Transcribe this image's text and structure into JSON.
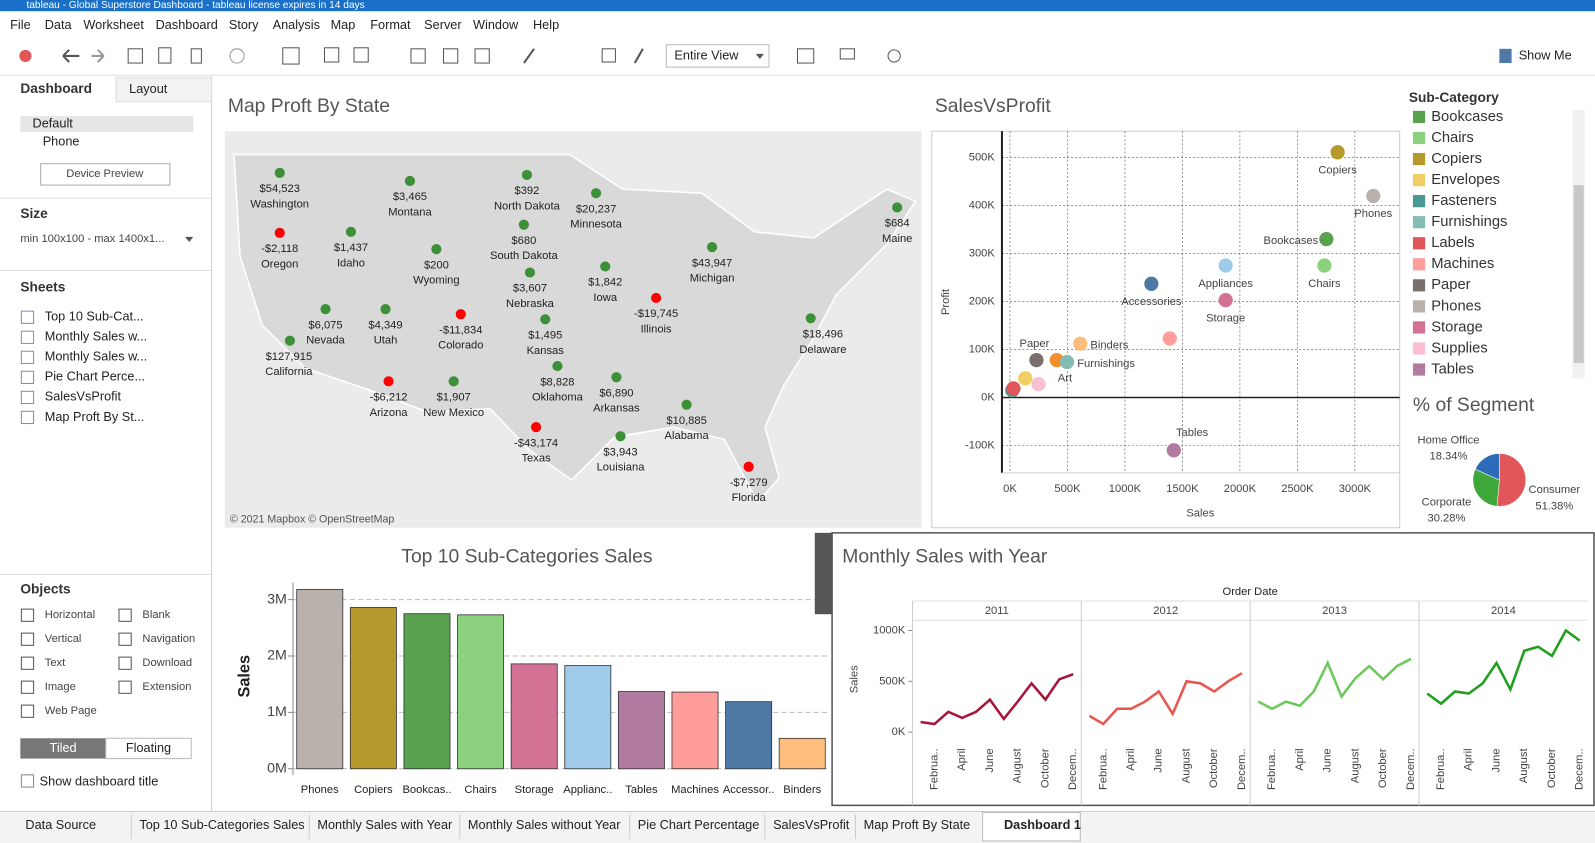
{
  "window": {
    "title": "tableau - Global Superstore Dashboard - tableau license expires in 14 days"
  },
  "menu": [
    "File",
    "Data",
    "Worksheet",
    "Dashboard",
    "Story",
    "Analysis",
    "Map",
    "Format",
    "Server",
    "Window",
    "Help"
  ],
  "toolbar": {
    "view": "Entire View",
    "show_me": "Show Me"
  },
  "side_panel": {
    "tabs": [
      "Dashboard",
      "Layout"
    ],
    "devices": [
      "Default",
      "Phone"
    ],
    "device_preview": "Device Preview",
    "size_heading": "Size",
    "size_value": "min 100x100 - max 1400x1...",
    "sheets_heading": "Sheets",
    "sheets": [
      "Top 10 Sub-Cat...",
      "Monthly Sales w...",
      "Monthly Sales w...",
      "Pie Chart Perce...",
      "SalesVsProfit",
      "Map Proft By St..."
    ],
    "objects_heading": "Objects",
    "objects": [
      "Horizontal",
      "Blank",
      "Vertical",
      "Navigation",
      "Text",
      "Download",
      "Image",
      "Extension",
      "Web Page"
    ],
    "layout_modes": [
      "Tiled",
      "Floating"
    ],
    "show_title": "Show dashboard title"
  },
  "tabs": [
    "Data Source",
    "Top 10 Sub-Categories Sales",
    "Monthly Sales with Year",
    "Monthly Sales without Year",
    "Pie Chart Percentage",
    "SalesVsProfit",
    "Map Proft By State",
    "Dashboard 1"
  ],
  "chart_data": [
    {
      "type": "bar",
      "title": "Top 10 Sub-Categories Sales",
      "y_label": "Sales",
      "categories": [
        "Phones",
        "Copiers",
        "Bookcas..",
        "Chairs",
        "Storage",
        "Applianc..",
        "Tables",
        "Machines",
        "Accessor..",
        "Binders"
      ],
      "values": [
        3180000,
        2860000,
        2750000,
        2730000,
        1860000,
        1830000,
        1370000,
        1360000,
        1190000,
        540000
      ],
      "colors": [
        "#bab0ac",
        "#b6992d",
        "#59a14f",
        "#8cd17d",
        "#d37295",
        "#a0cbe8",
        "#b07aa1",
        "#ff9d9a",
        "#4e79a7",
        "#ffbe7d"
      ],
      "ylim": [
        0,
        3300000
      ],
      "yticks": [
        {
          "value": 0,
          "label": "0M"
        },
        {
          "value": 1000000,
          "label": "1M"
        },
        {
          "value": 2000000,
          "label": "2M"
        },
        {
          "value": 3000000,
          "label": "3M"
        }
      ],
      "grid": true
    },
    {
      "type": "line",
      "title": "Monthly Sales with Year",
      "x_label": "Order Date",
      "y_label": "Sales",
      "categories": [
        null,
        "Februa..",
        null,
        "April",
        null,
        "June",
        null,
        "August",
        null,
        "October",
        null,
        "Decem.."
      ],
      "series": [
        {
          "name": "2011",
          "color": "#a8143a",
          "values": [
            100000,
            80000,
            200000,
            140000,
            200000,
            320000,
            130000,
            300000,
            480000,
            320000,
            520000,
            570000
          ]
        },
        {
          "name": "2012",
          "color": "#e8574f",
          "values": [
            160000,
            80000,
            230000,
            230000,
            300000,
            400000,
            180000,
            500000,
            480000,
            400000,
            500000,
            580000
          ]
        },
        {
          "name": "2013",
          "color": "#6cc95a",
          "values": [
            300000,
            230000,
            300000,
            260000,
            400000,
            680000,
            350000,
            530000,
            650000,
            520000,
            650000,
            720000
          ]
        },
        {
          "name": "2014",
          "color": "#1ea01e",
          "values": [
            380000,
            280000,
            400000,
            380000,
            480000,
            680000,
            420000,
            800000,
            840000,
            750000,
            1000000,
            900000
          ]
        }
      ],
      "ylim": [
        -100000,
        1100000
      ],
      "yticks": [
        {
          "value": 0,
          "label": "0K"
        },
        {
          "value": 500000,
          "label": "500K"
        },
        {
          "value": 1000000,
          "label": "1000K"
        }
      ]
    },
    {
      "type": "scatter",
      "title": "SalesVsProfit",
      "x_label": "Sales",
      "y_label": "Profit",
      "legend_title": "Sub-Category",
      "categories": [
        "Accessories",
        "Appliances",
        "Art",
        "Binders",
        "Bookcases",
        "Chairs",
        "Copiers",
        "Envelopes",
        "Fasteners",
        "Furnishings",
        "Labels",
        "Machines",
        "Paper",
        "Phones",
        "Storage",
        "Supplies",
        "Tables"
      ],
      "x": [
        1230000,
        1876000,
        407000,
        611000,
        2752000,
        2735000,
        2850000,
        133000,
        20000,
        496000,
        30000,
        1390000,
        230000,
        3160000,
        1876000,
        248000,
        1425000
      ],
      "values": [
        237000,
        275000,
        78000,
        112000,
        330000,
        275000,
        511000,
        40000,
        15000,
        74000,
        19000,
        123000,
        78000,
        420000,
        203000,
        28000,
        -110000
      ],
      "colors": [
        "#4e79a7",
        "#a0cbe8",
        "#f28e2b",
        "#ffbe7d",
        "#59a14f",
        "#8cd17d",
        "#b6992d",
        "#f1ce63",
        "#499894",
        "#86bcb6",
        "#e15759",
        "#ff9d9a",
        "#79706e",
        "#bab0ac",
        "#d37295",
        "#fabfd2",
        "#b07aa1"
      ],
      "labeled": [
        true,
        true,
        true,
        true,
        true,
        true,
        true,
        false,
        false,
        true,
        false,
        false,
        true,
        true,
        true,
        false,
        true
      ],
      "xlim": [
        -70000,
        3390000
      ],
      "ylim": [
        -157000,
        555000
      ],
      "xticks": [
        {
          "value": 0,
          "label": "0K"
        },
        {
          "value": 500000,
          "label": "500K"
        },
        {
          "value": 1000000,
          "label": "1000K"
        },
        {
          "value": 1500000,
          "label": "1500K"
        },
        {
          "value": 2000000,
          "label": "2000K"
        },
        {
          "value": 2500000,
          "label": "2500K"
        },
        {
          "value": 3000000,
          "label": "3000K"
        }
      ],
      "yticks": [
        {
          "value": -100000,
          "label": "-100K"
        },
        {
          "value": 0,
          "label": "0K"
        },
        {
          "value": 100000,
          "label": "100K"
        },
        {
          "value": 200000,
          "label": "200K"
        },
        {
          "value": 300000,
          "label": "300K"
        },
        {
          "value": 400000,
          "label": "400K"
        },
        {
          "value": 500000,
          "label": "500K"
        }
      ],
      "grid": true
    },
    {
      "type": "pie",
      "title": "% of Segment",
      "categories": [
        "Consumer",
        "Corporate",
        "Home Office"
      ],
      "values": [
        51.38,
        30.28,
        18.34
      ],
      "value_labels": [
        "51.38%",
        "30.28%",
        "18.34%"
      ],
      "colors": [
        "#e15759",
        "#3fa83a",
        "#2d6bb8"
      ]
    },
    {
      "type": "map",
      "title": "Map Proft By State",
      "credit": "© 2021 Mapbox © OpenStreetMap",
      "categories": [
        "Washington",
        "Montana",
        "North Dakota",
        "Minnesota",
        "Oregon",
        "Idaho",
        "Wyoming",
        "South Dakota",
        "Maine",
        "Michigan",
        "Iowa",
        "Nebraska",
        "Illinois",
        "Nevada",
        "Utah",
        "Colorado",
        "Kansas",
        "Delaware",
        "California",
        "Arizona",
        "New Mexico",
        "Oklahoma",
        "Arkansas",
        "Alabama",
        "Texas",
        "Louisiana",
        "Florida"
      ],
      "values": [
        54523,
        3465,
        392,
        20237,
        -2118,
        1437,
        200,
        680,
        684,
        43947,
        1842,
        3607,
        -19745,
        6075,
        4349,
        -11834,
        1495,
        18496,
        127915,
        -6212,
        1907,
        8828,
        6890,
        10885,
        -43174,
        3943,
        -7279
      ],
      "value_labels": [
        "$54,523",
        "$3,465",
        "$392",
        "$20,237",
        "-$2,118",
        "$1,437",
        "$200",
        "$680",
        "$684",
        "$43,947",
        "$1,842",
        "$3,607",
        "-$19,745",
        "$6,075",
        "$4,349",
        "-$11,834",
        "$1,495",
        "$18,496",
        "$127,915",
        "-$6,212",
        "$1,907",
        "$8,828",
        "$6,890",
        "$10,885",
        "-$43,174",
        "$3,943",
        "-$7,279"
      ],
      "positive_color": "#3d8f38",
      "negative_color": "#ff0000"
    }
  ]
}
